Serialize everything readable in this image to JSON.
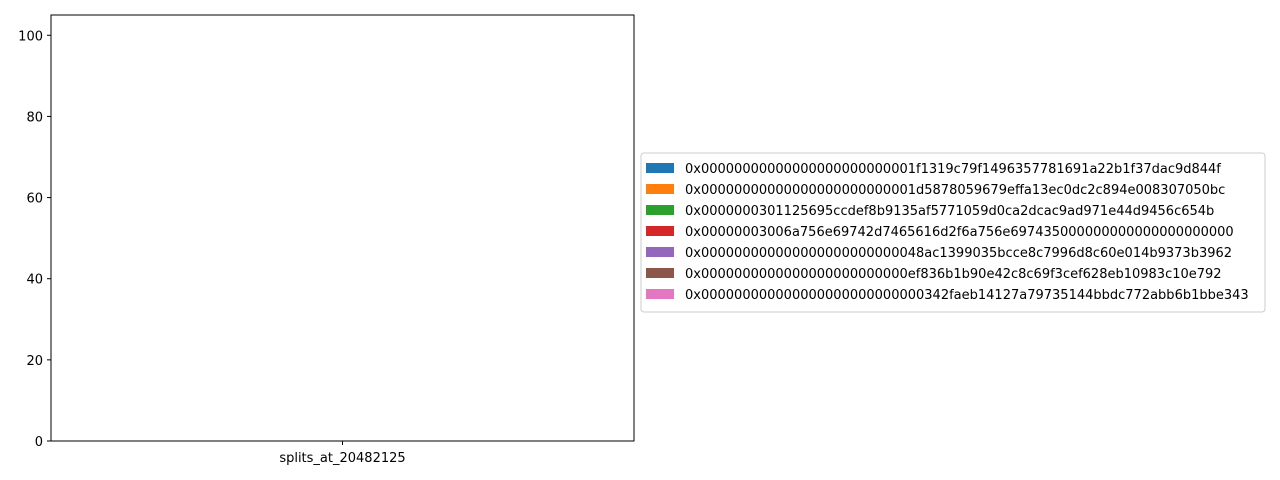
{
  "chart_data": {
    "type": "bar",
    "stacked": true,
    "title": "",
    "xlabel": "",
    "ylabel": "",
    "categories": [
      "splits_at_20482125"
    ],
    "ylim": [
      0,
      105
    ],
    "yticks": [
      0,
      20,
      40,
      60,
      80,
      100
    ],
    "grid": false,
    "legend_placement": "center-right, outside plot",
    "series": [
      {
        "name": "0x00000000000000000000000001f1319c79f1496357781691a22b1f37dac9d844f",
        "values": [
          0
        ],
        "color": "#1f77b4"
      },
      {
        "name": "0x00000000000000000000000001d5878059679effa13ec0dc2c894e008307050bc",
        "values": [
          0
        ],
        "color": "#ff7f0e"
      },
      {
        "name": "0x0000000301125695ccdef8b9135af5771059d0ca2dcac9ad971e44d9456c654b",
        "values": [
          0
        ],
        "color": "#2ca02c"
      },
      {
        "name": "0x00000003006a756e69742d7465616d2f6a756e697435000000000000000000000",
        "values": [
          0
        ],
        "color": "#d62728"
      },
      {
        "name": "0x000000000000000000000000048ac1399035bcce8c7996d8c60e014b9373b3962",
        "values": [
          0
        ],
        "color": "#9467bd"
      },
      {
        "name": "0x0000000000000000000000000ef836b1b90e42c8c69f3cef628eb10983c10e792",
        "values": [
          0
        ],
        "color": "#8c564b"
      },
      {
        "name": "0x000000000000000000000000000342faeb14127a79735144bbdc772abb6b1bbe343",
        "values": [
          0
        ],
        "color": "#e377c2"
      }
    ]
  }
}
